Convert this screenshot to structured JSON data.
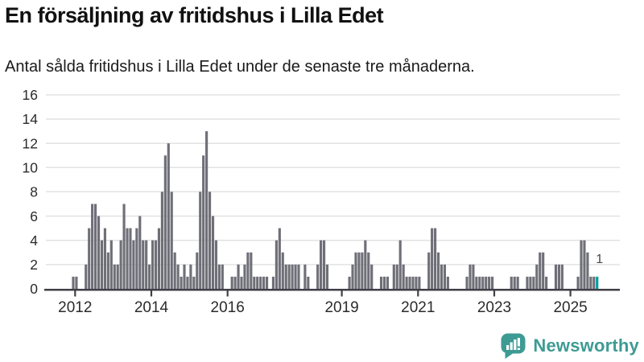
{
  "header": {
    "title": "En försäljning av fritidshus i Lilla Edet",
    "subtitle": "Antal sålda fritidshus i Lilla Edet under de senaste tre månaderna."
  },
  "chart_data": {
    "type": "bar",
    "title": "En försäljning av fritidshus i Lilla Edet",
    "subtitle": "Antal sålda fritidshus i Lilla Edet under de senaste tre månaderna.",
    "frequency": "monthly",
    "x_start_month": "2011-12",
    "x_end_month": "2025-09",
    "values": [
      1,
      1,
      0,
      0,
      2,
      5,
      7,
      7,
      6,
      4,
      5,
      3,
      4,
      2,
      2,
      4,
      7,
      5,
      5,
      4,
      5,
      6,
      4,
      4,
      2,
      4,
      4,
      5,
      8,
      11,
      12,
      8,
      3,
      2,
      1,
      2,
      1,
      2,
      1,
      3,
      8,
      11,
      13,
      8,
      6,
      4,
      2,
      2,
      0,
      0,
      1,
      1,
      2,
      1,
      2,
      3,
      3,
      1,
      1,
      1,
      1,
      1,
      0,
      1,
      4,
      5,
      3,
      2,
      2,
      2,
      2,
      2,
      0,
      2,
      1,
      0,
      0,
      2,
      4,
      4,
      2,
      0,
      0,
      0,
      0,
      0,
      0,
      1,
      2,
      3,
      3,
      3,
      4,
      3,
      2,
      0,
      0,
      1,
      1,
      1,
      0,
      2,
      2,
      4,
      2,
      1,
      1,
      1,
      1,
      1,
      0,
      0,
      3,
      5,
      5,
      3,
      2,
      2,
      1,
      0,
      0,
      0,
      0,
      0,
      1,
      2,
      2,
      1,
      1,
      1,
      1,
      1,
      1,
      0,
      0,
      0,
      0,
      0,
      1,
      1,
      1,
      0,
      0,
      1,
      1,
      1,
      2,
      3,
      3,
      1,
      0,
      0,
      2,
      2,
      2,
      0,
      0,
      0,
      0,
      1,
      4,
      4,
      3,
      1,
      1,
      1
    ],
    "ylim": [
      0,
      16
    ],
    "y_ticks": [
      0,
      2,
      4,
      6,
      8,
      10,
      12,
      14,
      16
    ],
    "x_tick_years": [
      2012,
      2014,
      2016,
      2019,
      2021,
      2023,
      2025
    ],
    "grid": "horizontal",
    "legend": "none",
    "last_bar_label": "1",
    "last_bar_highlighted": true,
    "colors": {
      "bar": "#6F6F78",
      "highlight": "#009E9E",
      "axis": "#3F3F47",
      "grid": "#E2E2E2",
      "tick_label": "#2B2B2B",
      "annotation": "#47474F"
    }
  },
  "footer": {
    "brand": "Newsworthy",
    "brand_color": "#3E9B94"
  }
}
